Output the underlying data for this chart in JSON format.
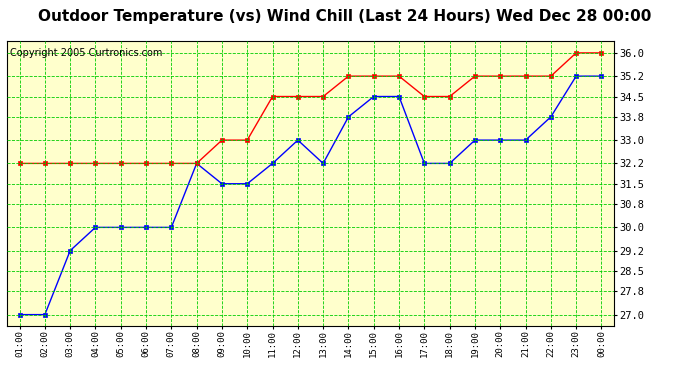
{
  "title": "Outdoor Temperature (vs) Wind Chill (Last 24 Hours) Wed Dec 28 00:00",
  "copyright": "Copyright 2005 Curtronics.com",
  "x_labels": [
    "01:00",
    "02:00",
    "03:00",
    "04:00",
    "05:00",
    "06:00",
    "07:00",
    "08:00",
    "09:00",
    "10:00",
    "11:00",
    "12:00",
    "13:00",
    "14:00",
    "15:00",
    "16:00",
    "17:00",
    "18:00",
    "19:00",
    "20:00",
    "21:00",
    "22:00",
    "23:00",
    "00:00"
  ],
  "outdoor_temp": [
    27.0,
    27.0,
    29.2,
    30.0,
    30.0,
    30.0,
    30.0,
    32.2,
    31.5,
    31.5,
    32.2,
    33.0,
    32.2,
    33.8,
    34.5,
    34.5,
    32.2,
    32.2,
    33.0,
    33.0,
    33.0,
    33.8,
    35.2,
    35.2
  ],
  "wind_chill": [
    32.2,
    32.2,
    32.2,
    32.2,
    32.2,
    32.2,
    32.2,
    32.2,
    33.0,
    33.0,
    34.5,
    34.5,
    34.5,
    35.2,
    35.2,
    35.2,
    34.5,
    34.5,
    35.2,
    35.2,
    35.2,
    35.2,
    36.0,
    36.0
  ],
  "y_ticks": [
    27.0,
    27.8,
    28.5,
    29.2,
    30.0,
    30.8,
    31.5,
    32.2,
    33.0,
    33.8,
    34.5,
    35.2,
    36.0
  ],
  "ylim": [
    26.6,
    36.4
  ],
  "bg_color": "#ffffcc",
  "grid_color": "#00cc00",
  "outdoor_color": "blue",
  "windchill_color": "red",
  "title_fontsize": 11,
  "copyright_fontsize": 7
}
